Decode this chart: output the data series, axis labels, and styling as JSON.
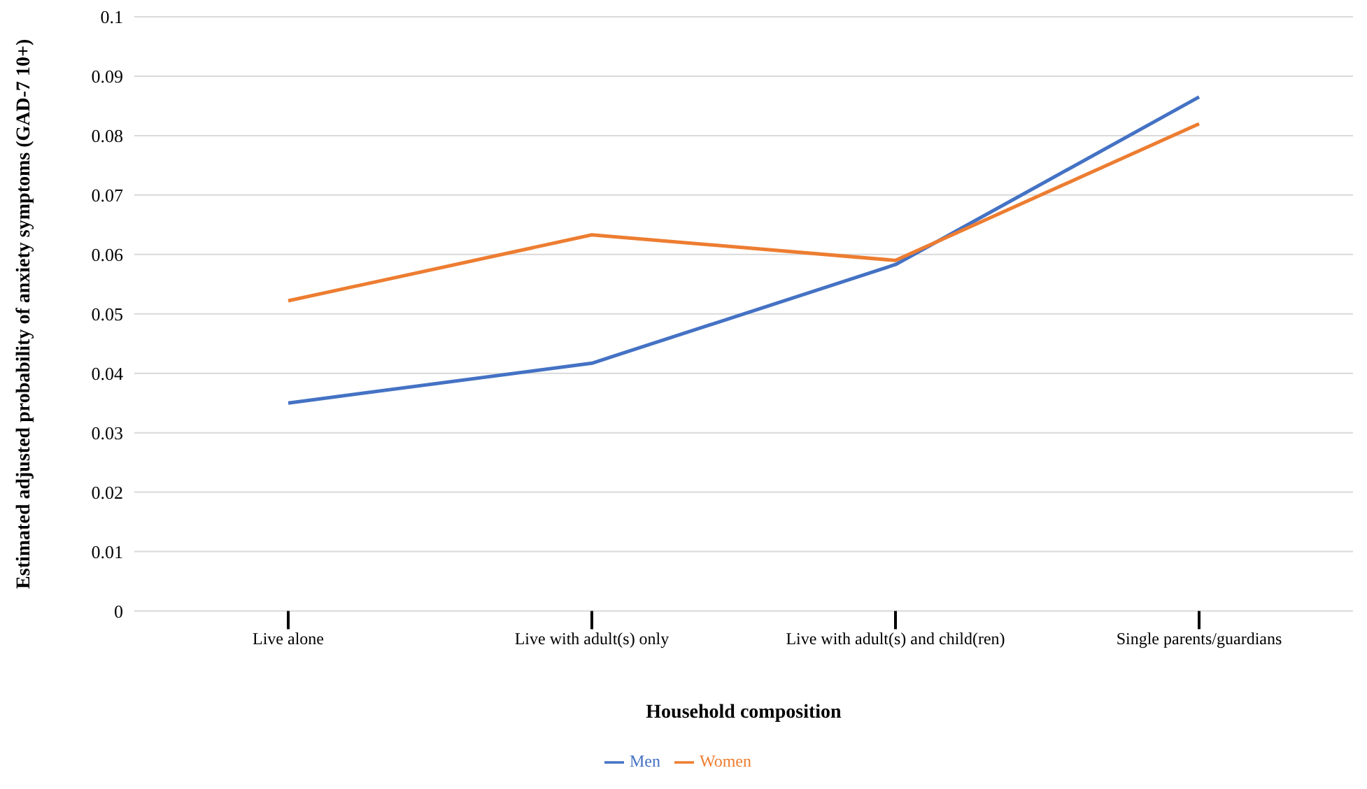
{
  "chart_data": {
    "type": "line",
    "xlabel": "Household composition",
    "ylabel": "Estimated adjusted probability of anxiety symptoms (GAD-7 10+)",
    "categories": [
      "Live alone",
      "Live with adult(s) only",
      "Live with adult(s) and child(ren)",
      "Single parents/guardians"
    ],
    "series": [
      {
        "name": "Men",
        "color": "#4472c4",
        "values": [
          0.035,
          0.0417,
          0.0583,
          0.0865
        ]
      },
      {
        "name": "Women",
        "color": "#ed7d31",
        "values": [
          0.0522,
          0.0633,
          0.059,
          0.082
        ]
      }
    ],
    "ylim": [
      0,
      0.1
    ],
    "yticks": [
      0,
      0.01,
      0.02,
      0.03,
      0.04,
      0.05,
      0.06,
      0.07,
      0.08,
      0.09,
      0.1
    ],
    "grid": "y",
    "legend": "bottom",
    "marker": "none",
    "line_style": "solid"
  }
}
